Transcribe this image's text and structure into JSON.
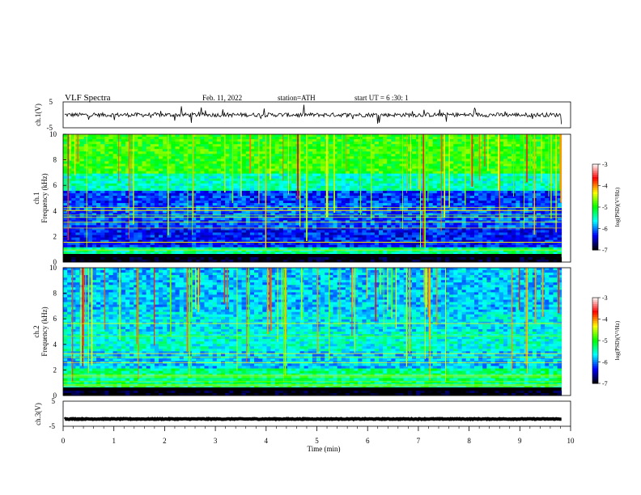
{
  "header": {
    "title": "VLF  Spectra",
    "date": "Feb. 11, 2022",
    "station": "station=ATH",
    "start": "start  UT  =    6  :30: 1"
  },
  "chart_data": [
    {
      "type": "line",
      "panel": "ch.1 waveform",
      "ylabel": "ch.1(V)",
      "yticks": [
        "5",
        "-5"
      ],
      "ylim": [
        -5,
        5
      ],
      "xlim": [
        0,
        10
      ],
      "x_end_min": 9.82,
      "baseline_v": 0.0,
      "color": "#000000"
    },
    {
      "type": "heatmap",
      "panel": "ch.1 spectrogram",
      "ylabel": "ch.1\nFrequency (kHz)",
      "ylabel_line1": "ch.1",
      "ylabel_line2": "Frequency (kHz)",
      "yticks": [
        "0",
        "2",
        "4",
        "6",
        "8",
        "10"
      ],
      "ylim": [
        0,
        10
      ],
      "xlim": [
        0,
        10
      ],
      "x_end_min": 9.82,
      "colorbar": {
        "label": "log(PSD)(V²/Hz)",
        "ticks": [
          "-3",
          "-4",
          "-5",
          "-6",
          "-7"
        ],
        "range": [
          -7,
          -3
        ],
        "colormap": [
          "#000000",
          "#0000ff",
          "#00ffff",
          "#00ff00",
          "#ffff00",
          "#ff0000",
          "#ffffff"
        ]
      }
    },
    {
      "type": "heatmap",
      "panel": "ch.2 spectrogram",
      "ylabel_line1": "ch.2",
      "ylabel_line2": "Frequency (kHz)",
      "yticks": [
        "0",
        "2",
        "4",
        "6",
        "8",
        "10"
      ],
      "ylim": [
        0,
        10
      ],
      "xlim": [
        0,
        10
      ],
      "x_end_min": 9.82,
      "colorbar": {
        "label": "log(PSD)(V²/Hz)",
        "ticks": [
          "-3",
          "-4",
          "-5",
          "-6",
          "-7"
        ],
        "range": [
          -7,
          -3
        ]
      }
    },
    {
      "type": "line",
      "panel": "ch.3 waveform",
      "ylabel": "ch.3(V)",
      "yticks": [
        "5",
        "-5"
      ],
      "ylim": [
        -5,
        5
      ],
      "xlim": [
        0,
        10
      ],
      "x_end_min": 9.82,
      "baseline_v": -2.1,
      "color": "#000000"
    }
  ],
  "xaxis": {
    "label": "Time  (min)",
    "ticks": [
      "0",
      "1",
      "2",
      "3",
      "4",
      "5",
      "6",
      "7",
      "8",
      "9",
      "10"
    ]
  }
}
